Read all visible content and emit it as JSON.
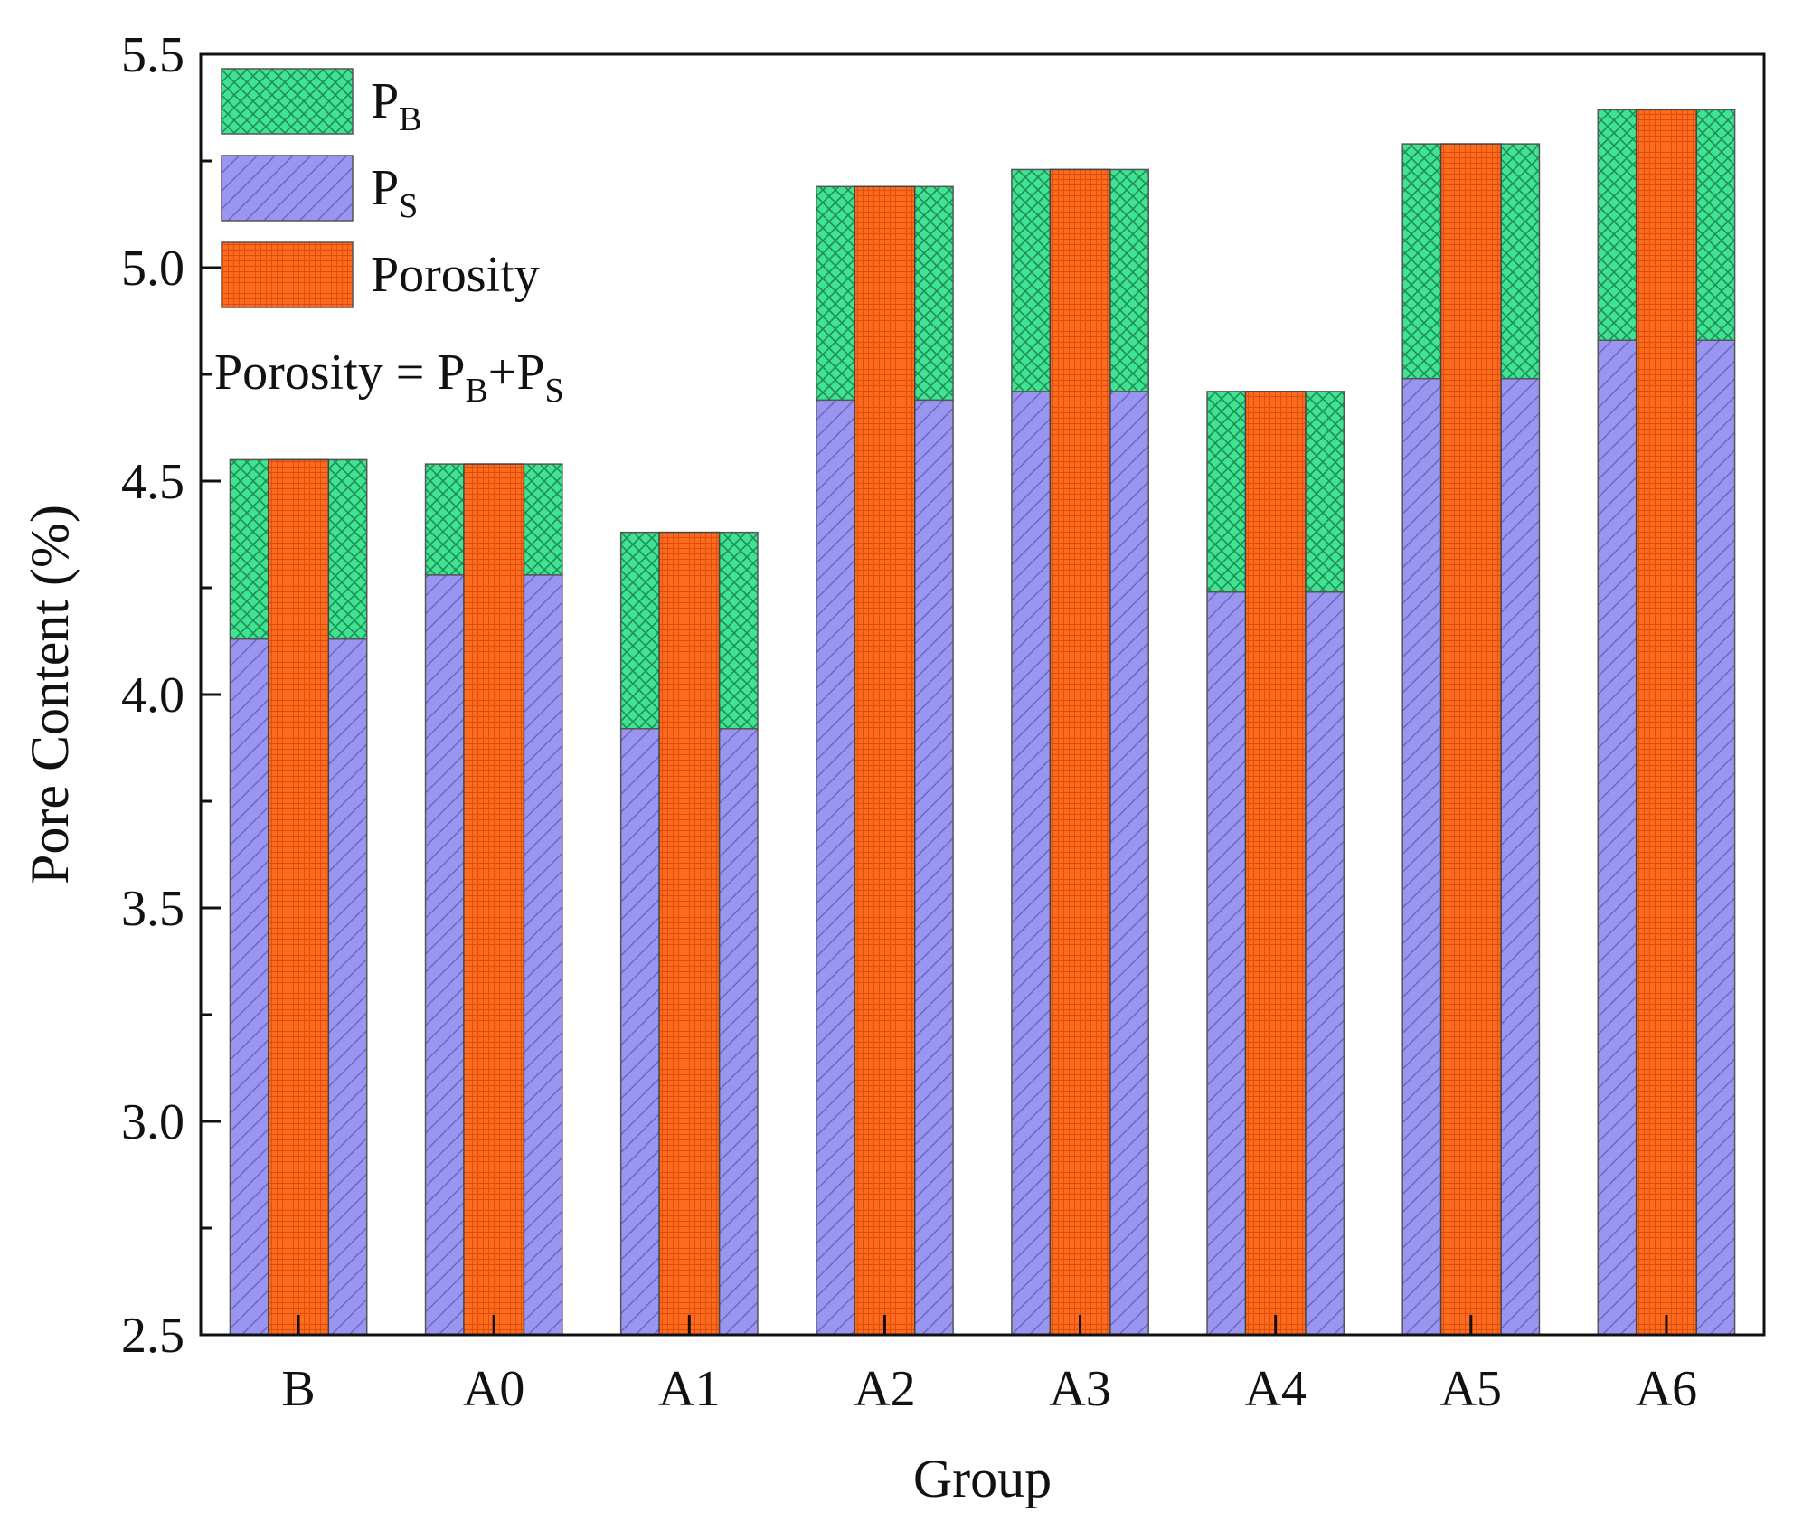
{
  "chart_data": {
    "type": "bar",
    "title": "",
    "xlabel": "Group",
    "ylabel": "Pore Content (%)",
    "ylim": [
      2.5,
      5.5
    ],
    "yticks": [
      "2.5",
      "3.0",
      "3.5",
      "4.0",
      "4.5",
      "5.0",
      "5.5"
    ],
    "grid": false,
    "legend_position": "top-left",
    "categories": [
      "B",
      "A0",
      "A1",
      "A2",
      "A3",
      "A4",
      "A5",
      "A6"
    ],
    "series": [
      {
        "name": "PS",
        "color": "#9a96f0",
        "stacked": true,
        "values": [
          4.13,
          4.28,
          3.92,
          4.69,
          4.71,
          4.24,
          4.74,
          4.83
        ]
      },
      {
        "name": "PB",
        "color": "#3fe391",
        "stacked": true,
        "values": [
          0.42,
          0.26,
          0.46,
          0.5,
          0.52,
          0.47,
          0.55,
          0.54
        ]
      },
      {
        "name": "Porosity",
        "color": "#ff6a1f",
        "stacked": false,
        "values": [
          4.55,
          4.54,
          4.38,
          5.19,
          5.23,
          4.71,
          5.29,
          5.37
        ]
      }
    ]
  },
  "legend": {
    "items": [
      {
        "key": "PB",
        "main": "P",
        "sub": "B",
        "color": "#3fe391"
      },
      {
        "key": "PS",
        "main": "P",
        "sub": "S",
        "color": "#9a96f0"
      },
      {
        "key": "Porosity",
        "main": "Porosity",
        "sub": "",
        "color": "#ff6a1f"
      }
    ],
    "formula": {
      "lhs": "Porosity = P",
      "sub1": "B",
      "plus": "+P",
      "sub2": "S"
    }
  }
}
